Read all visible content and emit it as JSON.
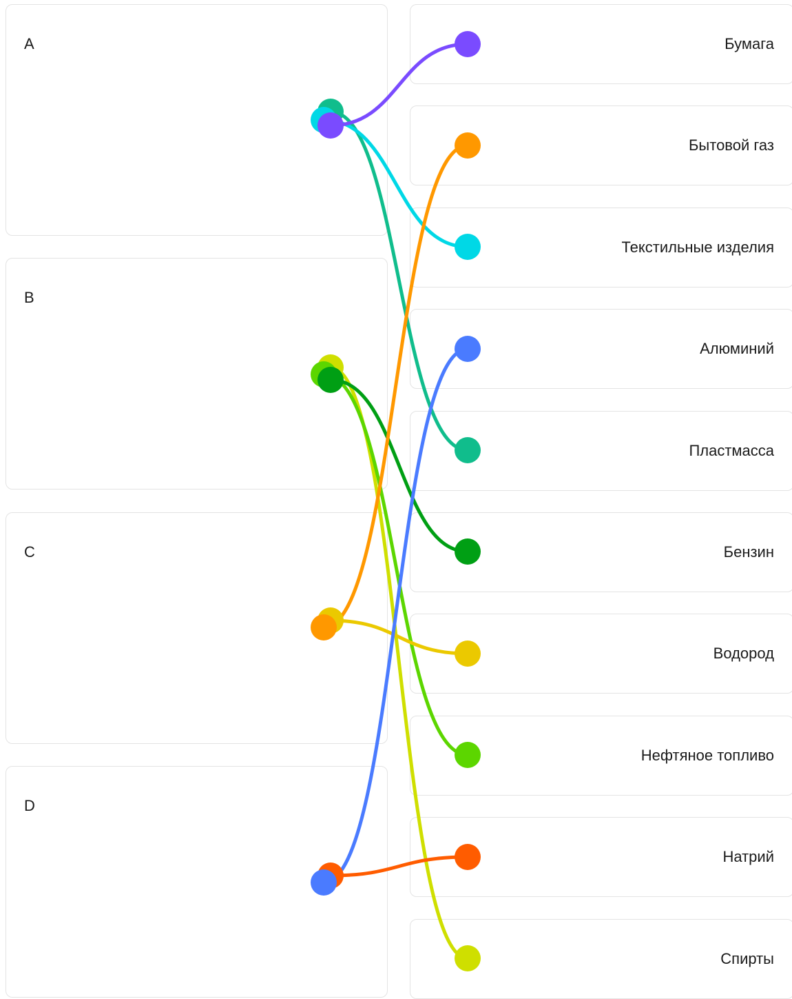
{
  "left_items": [
    {
      "key": "a",
      "label": "A"
    },
    {
      "key": "b",
      "label": "B"
    },
    {
      "key": "c",
      "label": "C"
    },
    {
      "key": "d",
      "label": "D"
    }
  ],
  "right_items": [
    {
      "key": "paper",
      "label": "Бумага"
    },
    {
      "key": "household-gas",
      "label": "Бытовой газ"
    },
    {
      "key": "textiles",
      "label": "Текстильные изделия"
    },
    {
      "key": "aluminium",
      "label": "Алюминий"
    },
    {
      "key": "plastic",
      "label": "Пластмасса"
    },
    {
      "key": "petrol",
      "label": "Бензин"
    },
    {
      "key": "hydrogen",
      "label": "Водород"
    },
    {
      "key": "oil-fuel",
      "label": "Нефтяное топливо"
    },
    {
      "key": "sodium",
      "label": "Натрий"
    },
    {
      "key": "alcohols",
      "label": "Спирты"
    }
  ],
  "connections": [
    {
      "from": 0,
      "to": 4,
      "color": "#10bd8c"
    },
    {
      "from": 0,
      "to": 2,
      "color": "#00d8e6"
    },
    {
      "from": 0,
      "to": 0,
      "color": "#7a4bff"
    },
    {
      "from": 1,
      "to": 9,
      "color": "#cfdf00"
    },
    {
      "from": 1,
      "to": 7,
      "color": "#5cd600"
    },
    {
      "from": 1,
      "to": 5,
      "color": "#009f14"
    },
    {
      "from": 2,
      "to": 6,
      "color": "#ebc900"
    },
    {
      "from": 2,
      "to": 1,
      "color": "#ff9800"
    },
    {
      "from": 3,
      "to": 8,
      "color": "#ff5c00"
    },
    {
      "from": 3,
      "to": 3,
      "color": "#4a7bff"
    }
  ]
}
